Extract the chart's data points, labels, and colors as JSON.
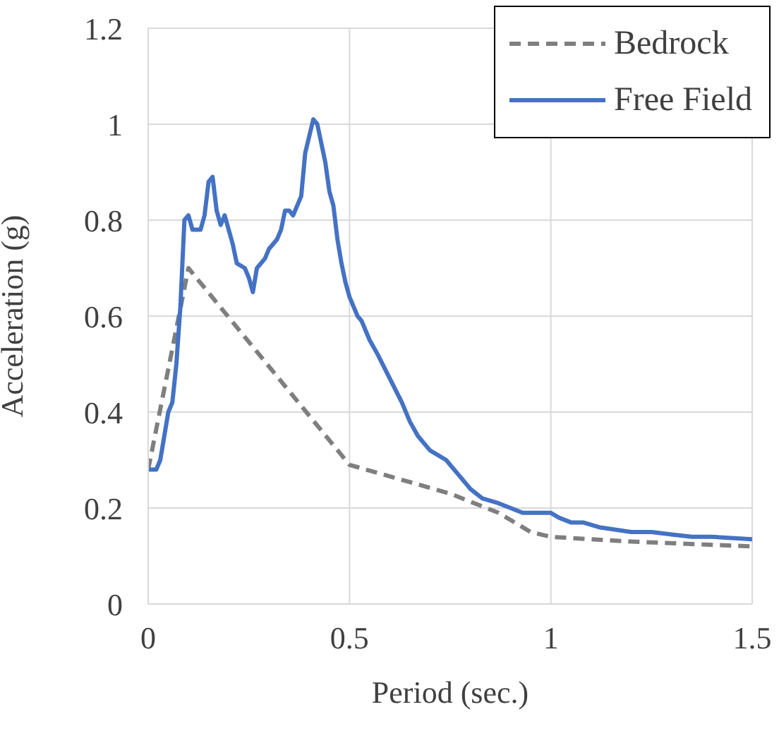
{
  "chart_data": {
    "type": "line",
    "xlabel": "Period (sec.)",
    "ylabel": "Acceleration (g)",
    "xlim": [
      0,
      1.5
    ],
    "xticks": [
      0,
      0.5,
      1,
      1.5
    ],
    "ylim": [
      0,
      1.2
    ],
    "yticks": [
      0,
      0.2,
      0.4,
      0.6,
      0.8,
      1,
      1.2
    ],
    "grid": true,
    "legend": "top right",
    "marker": "none",
    "series": [
      {
        "name": "Bedrock",
        "color": "#7f7f7f",
        "line_style": "dashed",
        "x": [
          0,
          0.1,
          0.5,
          0.75,
          0.87,
          0.95,
          1.0,
          1.2,
          1.5
        ],
        "values": [
          0.28,
          0.7,
          0.29,
          0.23,
          0.19,
          0.15,
          0.14,
          0.13,
          0.12
        ]
      },
      {
        "name": "Free Field",
        "color": "#4472c4",
        "line_style": "solid",
        "x": [
          0,
          0.02,
          0.03,
          0.04,
          0.05,
          0.06,
          0.07,
          0.08,
          0.09,
          0.1,
          0.11,
          0.13,
          0.14,
          0.15,
          0.16,
          0.17,
          0.18,
          0.19,
          0.2,
          0.21,
          0.22,
          0.24,
          0.25,
          0.26,
          0.27,
          0.29,
          0.3,
          0.32,
          0.33,
          0.34,
          0.35,
          0.36,
          0.38,
          0.39,
          0.41,
          0.42,
          0.43,
          0.44,
          0.45,
          0.46,
          0.47,
          0.48,
          0.49,
          0.5,
          0.52,
          0.53,
          0.55,
          0.57,
          0.6,
          0.63,
          0.65,
          0.67,
          0.7,
          0.72,
          0.74,
          0.77,
          0.8,
          0.83,
          0.87,
          0.9,
          0.93,
          0.95,
          1.0,
          1.02,
          1.05,
          1.08,
          1.12,
          1.2,
          1.25,
          1.3,
          1.35,
          1.4,
          1.5
        ],
        "values": [
          0.28,
          0.28,
          0.3,
          0.35,
          0.4,
          0.42,
          0.5,
          0.62,
          0.8,
          0.81,
          0.78,
          0.78,
          0.81,
          0.88,
          0.89,
          0.82,
          0.79,
          0.81,
          0.78,
          0.75,
          0.71,
          0.7,
          0.68,
          0.65,
          0.7,
          0.72,
          0.74,
          0.76,
          0.78,
          0.82,
          0.82,
          0.81,
          0.85,
          0.94,
          1.01,
          1.0,
          0.96,
          0.92,
          0.86,
          0.83,
          0.76,
          0.71,
          0.67,
          0.64,
          0.6,
          0.59,
          0.55,
          0.52,
          0.47,
          0.42,
          0.38,
          0.35,
          0.32,
          0.31,
          0.3,
          0.27,
          0.24,
          0.22,
          0.21,
          0.2,
          0.19,
          0.19,
          0.19,
          0.18,
          0.17,
          0.17,
          0.16,
          0.15,
          0.15,
          0.145,
          0.14,
          0.14,
          0.135
        ]
      }
    ]
  }
}
